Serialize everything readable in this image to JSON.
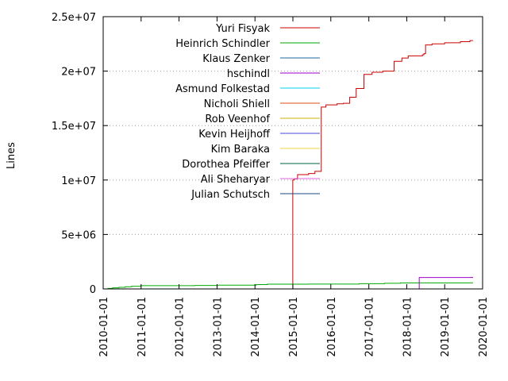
{
  "chart_data": {
    "type": "line",
    "title": "",
    "xlabel": "",
    "ylabel": "Lines",
    "x_type": "date",
    "xlim": [
      "2010-01-01",
      "2020-01-01"
    ],
    "ylim": [
      0,
      25000000
    ],
    "grid": "dotted horizontal at y ticks",
    "legend_position": "top-left, inside plot",
    "x_ticks": [
      "2010-01-01",
      "2011-01-01",
      "2012-01-01",
      "2013-01-01",
      "2014-01-01",
      "2015-01-01",
      "2016-01-01",
      "2017-01-01",
      "2018-01-01",
      "2019-01-01",
      "2020-01-01"
    ],
    "y_ticks": [
      {
        "value": 0,
        "label": "0"
      },
      {
        "value": 5000000,
        "label": "5e+06"
      },
      {
        "value": 10000000,
        "label": "1e+07"
      },
      {
        "value": 15000000,
        "label": "1.5e+07"
      },
      {
        "value": 20000000,
        "label": "2e+07"
      },
      {
        "value": 25000000,
        "label": "2.5e+07"
      }
    ],
    "series": [
      {
        "name": "Yuri Fisyak",
        "color": "#cc0000",
        "step": true,
        "points": [
          [
            "2014-12-31",
            0
          ],
          [
            "2014-12-31",
            10000000
          ],
          [
            "2015-01-15",
            10100000
          ],
          [
            "2015-02-15",
            10500000
          ],
          [
            "2015-06-01",
            10600000
          ],
          [
            "2015-08-01",
            10800000
          ],
          [
            "2015-10-01",
            16700000
          ],
          [
            "2015-11-15",
            16900000
          ],
          [
            "2016-03-01",
            17000000
          ],
          [
            "2016-05-01",
            17050000
          ],
          [
            "2016-07-01",
            17600000
          ],
          [
            "2016-09-01",
            18400000
          ],
          [
            "2016-11-15",
            19700000
          ],
          [
            "2017-02-01",
            19900000
          ],
          [
            "2017-05-15",
            20000000
          ],
          [
            "2017-09-01",
            20900000
          ],
          [
            "2017-11-15",
            21200000
          ],
          [
            "2018-01-15",
            21400000
          ],
          [
            "2018-06-01",
            21500000
          ],
          [
            "2018-06-15",
            21600000
          ],
          [
            "2018-07-01",
            22400000
          ],
          [
            "2018-09-01",
            22500000
          ],
          [
            "2019-01-01",
            22600000
          ],
          [
            "2019-06-01",
            22700000
          ],
          [
            "2019-09-01",
            22800000
          ],
          [
            "2019-10-01",
            22800000
          ]
        ]
      },
      {
        "name": "Heinrich Schindler",
        "color": "#00aa00",
        "step": true,
        "points": [
          [
            "2010-01-01",
            0
          ],
          [
            "2010-02-15",
            50000
          ],
          [
            "2010-04-01",
            100000
          ],
          [
            "2010-06-01",
            150000
          ],
          [
            "2010-08-01",
            200000
          ],
          [
            "2010-10-01",
            250000
          ],
          [
            "2011-01-01",
            300000
          ],
          [
            "2012-06-01",
            320000
          ],
          [
            "2013-01-01",
            350000
          ],
          [
            "2014-01-15",
            400000
          ],
          [
            "2014-05-01",
            440000
          ],
          [
            "2015-06-01",
            450000
          ],
          [
            "2016-10-01",
            480000
          ],
          [
            "2017-06-01",
            520000
          ],
          [
            "2017-11-01",
            560000
          ],
          [
            "2019-10-01",
            560000
          ]
        ]
      },
      {
        "name": "Klaus Zenker",
        "color": "#1a6aa0",
        "step": true,
        "points": []
      },
      {
        "name": "hschindl",
        "color": "#a000c8",
        "step": true,
        "points": [
          [
            "2018-05-01",
            0
          ],
          [
            "2018-05-01",
            1050000
          ],
          [
            "2019-10-01",
            1050000
          ]
        ]
      },
      {
        "name": "Asmund Folkestad",
        "color": "#00d0f0",
        "step": true,
        "points": []
      },
      {
        "name": "Nicholi Shiell",
        "color": "#d85010",
        "step": true,
        "points": []
      },
      {
        "name": "Rob Veenhof",
        "color": "#d0b000",
        "step": true,
        "points": []
      },
      {
        "name": "Kevin Heijhoff",
        "color": "#4848d8",
        "step": true,
        "points": []
      },
      {
        "name": "Kim Baraka",
        "color": "#f0d040",
        "step": true,
        "points": []
      },
      {
        "name": "Dorothea Pfeiffer",
        "color": "#006040",
        "step": true,
        "points": []
      },
      {
        "name": "Ali Sheharyar",
        "color": "#e060e0",
        "step": true,
        "points": []
      },
      {
        "name": "Julian Schutsch",
        "color": "#1a4a80",
        "step": true,
        "points": []
      }
    ]
  }
}
